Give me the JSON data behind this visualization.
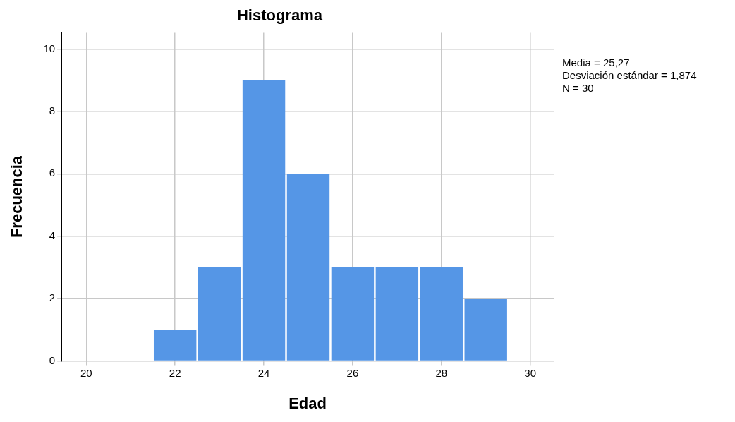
{
  "chart_data": {
    "type": "histogram",
    "title": "Histograma",
    "xlabel": "Edad",
    "ylabel": "Frecuencia",
    "bins": [
      21.5,
      22.5,
      23.5,
      24.5,
      25.5,
      26.5,
      27.5,
      28.5,
      29.5
    ],
    "values": [
      1,
      3,
      9,
      6,
      3,
      3,
      3,
      2
    ],
    "color": "#5596e6",
    "xlim": [
      19.44,
      30.53
    ],
    "xticks": [
      20,
      22,
      24,
      26,
      28,
      30
    ],
    "ylim": [
      0,
      10.52
    ],
    "yticks": [
      0,
      2,
      4,
      6,
      8,
      10
    ],
    "grid": true,
    "legend": false,
    "annotations": [
      "Media = 25,27",
      "Desviación estándar = 1,874",
      "N = 30"
    ]
  }
}
